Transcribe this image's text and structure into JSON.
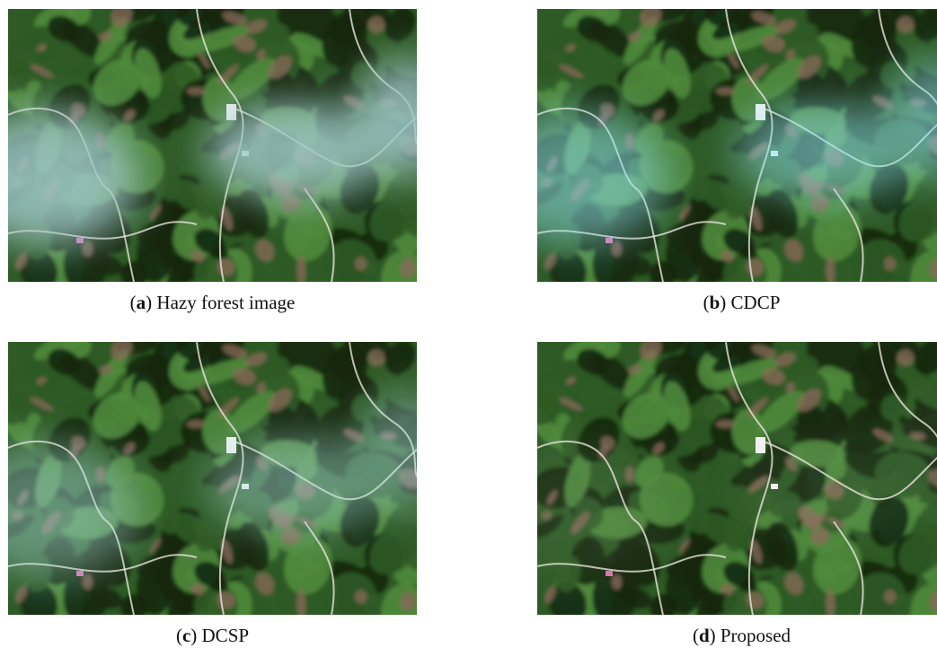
{
  "panels": [
    {
      "id": "a",
      "letter": "a",
      "caption": "Hazy forest image",
      "haze": 0.85,
      "tint": "#9fc8c8"
    },
    {
      "id": "b",
      "letter": "b",
      "caption": "CDCP",
      "haze": 0.55,
      "tint": "#8fe0ea"
    },
    {
      "id": "c",
      "letter": "c",
      "caption": "DCSP",
      "haze": 0.45,
      "tint": "#a8dcdc"
    },
    {
      "id": "d",
      "letter": "d",
      "caption": "Proposed",
      "haze": 0.08,
      "tint": "#c8d8d0"
    }
  ],
  "colors": {
    "forest_dark": "#14280f",
    "forest_mid": "#2d5a25",
    "forest_light": "#4f8a3c",
    "soil": "#8a6a5a",
    "road": "#e8e4dc"
  }
}
